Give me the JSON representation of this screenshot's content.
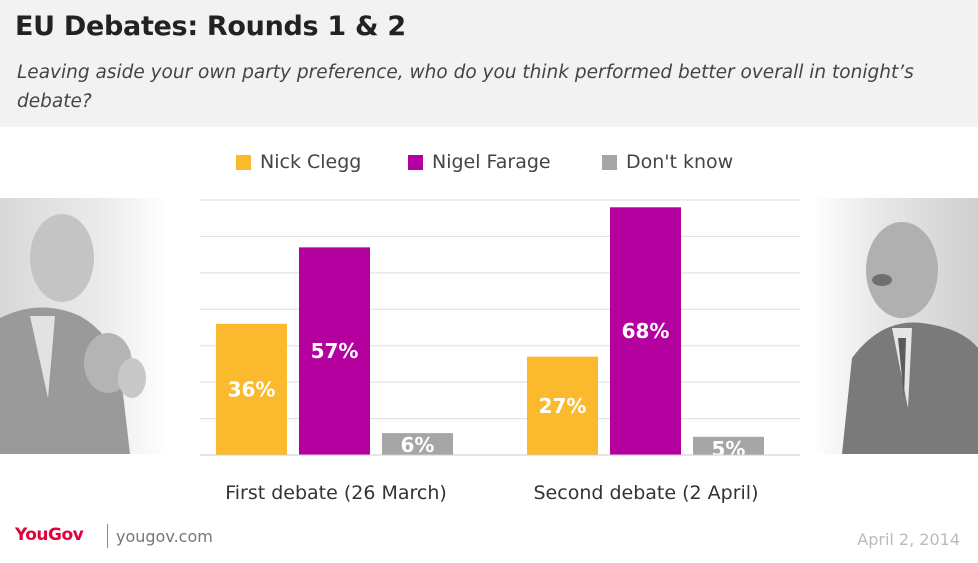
{
  "header": {
    "title": "EU Debates: Rounds 1  & 2",
    "subtitle": "Leaving aside your own party preference, who do you think performed better overall in tonight’s debate?"
  },
  "colors": {
    "header_bg": "#f2f2f2",
    "nick_clegg": "#fbb92d",
    "nigel_farage": "#b4009e",
    "dont_know": "#a6a6a6",
    "brand": "#e4003b"
  },
  "chart_data": {
    "type": "bar",
    "title": "EU Debates: Rounds 1  & 2",
    "categories": [
      "First debate (26 March)",
      "Second debate (2 April)"
    ],
    "series": [
      {
        "name": "Nick Clegg",
        "values": [
          36,
          27
        ],
        "labels": [
          "36%",
          "27%"
        ],
        "color": "#fbb92d"
      },
      {
        "name": "Nigel Farage",
        "values": [
          57,
          68
        ],
        "labels": [
          "57%",
          "68%"
        ],
        "color": "#b4009e"
      },
      {
        "name": "Don't know",
        "values": [
          6,
          5
        ],
        "labels": [
          "6%",
          "5%"
        ],
        "color": "#a6a6a6"
      }
    ],
    "ylim": [
      0,
      70
    ],
    "grid": true,
    "legend_position": "top-center",
    "xlabel": "",
    "ylabel": ""
  },
  "footer": {
    "logo": "YouGov",
    "url": "yougov.com",
    "date": "April 2, 2014"
  },
  "photos": {
    "left_icon": "person-photo-icon",
    "right_icon": "person-photo-icon"
  }
}
